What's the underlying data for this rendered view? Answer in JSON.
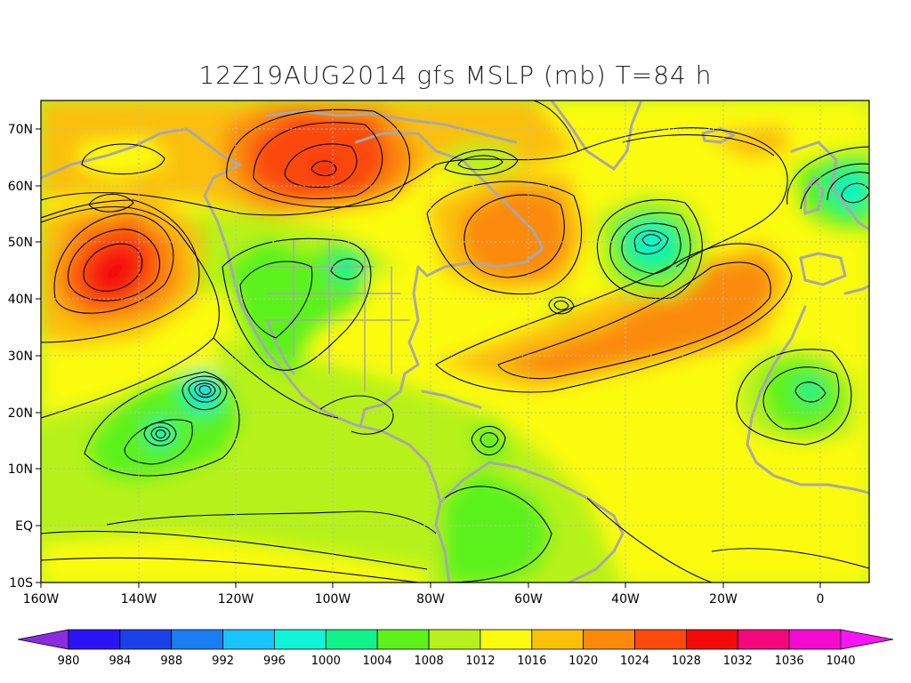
{
  "title": "12Z19AUG2014 gfs MSLP (mb) T=84 h",
  "axes": {
    "lat_labels": [
      "70N",
      "60N",
      "50N",
      "40N",
      "30N",
      "20N",
      "10N",
      "EQ",
      "10S"
    ],
    "lon_labels": [
      "160W",
      "140W",
      "120W",
      "100W",
      "80W",
      "60W",
      "40W",
      "20W",
      "0"
    ]
  },
  "colorbar": {
    "levels": [
      "980",
      "984",
      "988",
      "992",
      "996",
      "1000",
      "1004",
      "1008",
      "1012",
      "1016",
      "1020",
      "1024",
      "1028",
      "1032",
      "1036",
      "1040"
    ],
    "colors": [
      "#8a2be2",
      "#2a14f5",
      "#1a40e8",
      "#1a7ef5",
      "#19c4ff",
      "#10f5d8",
      "#10f38a",
      "#5cf21a",
      "#b6f21a",
      "#fbfb10",
      "#fbc00a",
      "#fb8a0a",
      "#fb4a0a",
      "#f50a0a",
      "#f5087a",
      "#f50ad2",
      "#fa14fa"
    ],
    "min_color": "#8a2be2",
    "max_color": "#fa14fa"
  },
  "colors": {
    "land_outline": "#a8a8a8",
    "contour": "#000000",
    "grid": "#bbbbbb"
  },
  "map_data": {
    "variable": "MSLP (mb)",
    "lon_range": [
      -160,
      10
    ],
    "lat_range": [
      -10,
      75
    ],
    "pressure_centers": [
      {
        "type": "high",
        "lon": -145,
        "lat": 44,
        "value": 1030
      },
      {
        "type": "high",
        "lon": -100,
        "lat": 63,
        "value": 1028
      },
      {
        "type": "high",
        "lon": -65,
        "lat": 52,
        "value": 1024
      },
      {
        "type": "high",
        "lon": -30,
        "lat": 32,
        "value": 1024
      },
      {
        "type": "high",
        "lon": -152,
        "lat": 64,
        "value": 1016
      },
      {
        "type": "low",
        "lon": -35,
        "lat": 51,
        "value": 1000
      },
      {
        "type": "low",
        "lon": 3,
        "lat": 59,
        "value": 1002
      },
      {
        "type": "low",
        "lon": -127,
        "lat": 24,
        "value": 994
      },
      {
        "type": "low",
        "lon": -135,
        "lat": 16,
        "value": 998
      },
      {
        "type": "low",
        "lon": -2,
        "lat": 23,
        "value": 1006
      },
      {
        "type": "low",
        "lon": -101,
        "lat": 45,
        "value": 1006
      },
      {
        "type": "low",
        "lon": -70,
        "lat": 65,
        "value": 1010
      },
      {
        "type": "low",
        "lon": -69,
        "lat": 15,
        "value": 1008
      },
      {
        "type": "low",
        "lon": -65,
        "lat": 2,
        "value": 1007
      }
    ]
  }
}
